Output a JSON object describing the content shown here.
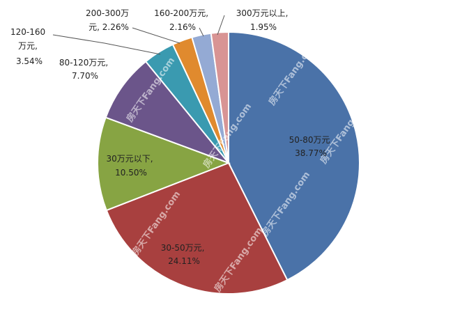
{
  "chart_data": {
    "type": "pie",
    "title": "",
    "slices": [
      {
        "label": "50-80万元",
        "value": 38.77,
        "pct_text": "38.77%",
        "color": "#4A72A8"
      },
      {
        "label": "30-50万元",
        "value": 24.11,
        "pct_text": "24.11%",
        "color": "#A8403F"
      },
      {
        "label": "30万元以下",
        "value": 10.5,
        "pct_text": "10.50%",
        "color": "#87A443"
      },
      {
        "label": "80-120万元",
        "value": 7.7,
        "pct_text": "7.70%",
        "color": "#6B558A"
      },
      {
        "label": "120-160万元",
        "value": 3.54,
        "pct_text": "3.54%",
        "color": "#3A9AB0"
      },
      {
        "label": "200-300万元",
        "value": 2.26,
        "pct_text": "2.26%",
        "color": "#E08A2E"
      },
      {
        "label": "160-200万元",
        "value": 2.16,
        "pct_text": "2.16%",
        "color": "#94AAD4"
      },
      {
        "label": "300万元以上",
        "value": 1.95,
        "pct_text": "1.95%",
        "color": "#D89494"
      }
    ],
    "start_direction": "top",
    "order": "clockwise",
    "legend": "none"
  },
  "labels": {
    "s0": {
      "line1": "50-80万元",
      "line2": "38.77%"
    },
    "s1": {
      "line1": "30-50万元,",
      "line2": "24.11%"
    },
    "s2": {
      "line1": "30万元以下,",
      "line2": "10.50%"
    },
    "s3": {
      "line1": "80-120万元,",
      "line2": "7.70%"
    },
    "s4": {
      "line1": "120-160",
      "line2": "万元,",
      "line3": "3.54%"
    },
    "s5": {
      "line1": "200-300万",
      "line2": "元, 2.26%"
    },
    "s6": {
      "line1": "160-200万元,",
      "line2": "2.16%"
    },
    "s7": {
      "line1": "300万元以上,",
      "line2": "1.95%"
    }
  },
  "watermark": {
    "text": "房天下Fang.com"
  }
}
